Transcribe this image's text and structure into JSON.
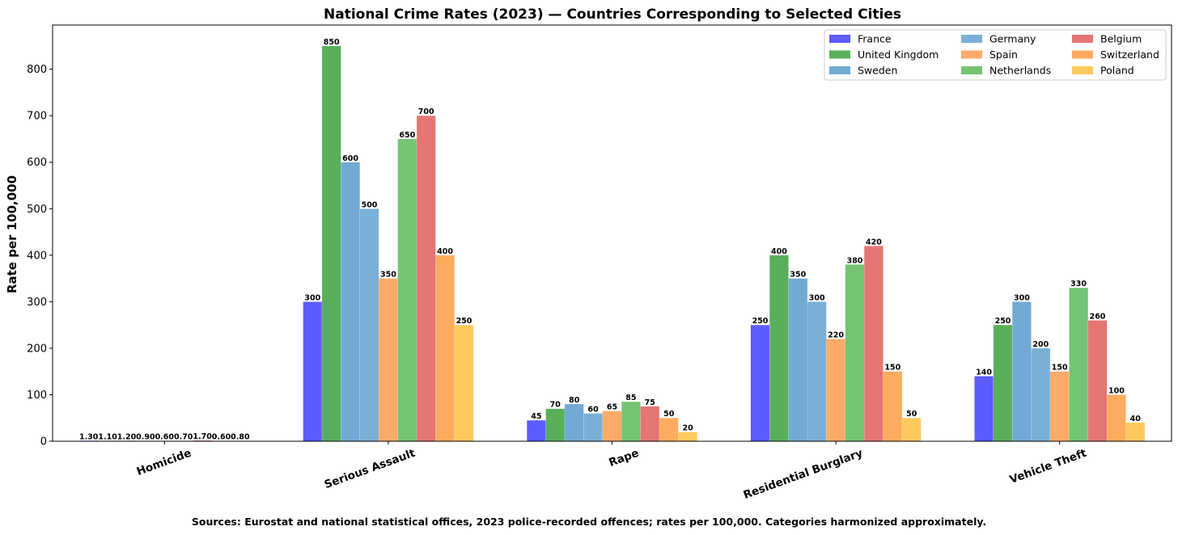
{
  "chart_data": {
    "type": "bar",
    "title": "National Crime Rates (2023) — Countries Corresponding to Selected Cities",
    "xlabel": "",
    "ylabel": "Rate per 100,000",
    "ylim": [
      0,
      895
    ],
    "yticks": [
      0,
      100,
      200,
      300,
      400,
      500,
      600,
      700,
      800
    ],
    "categories": [
      "Homicide",
      "Serious Assault",
      "Rape",
      "Residential Burglary",
      "Vehicle Theft"
    ],
    "series": [
      {
        "name": "France",
        "color": "#5c5cff",
        "values": [
          1.3,
          300,
          45,
          250,
          140
        ]
      },
      {
        "name": "United Kingdom",
        "color": "#5aaf5a",
        "values": [
          1.1,
          850,
          70,
          400,
          250
        ]
      },
      {
        "name": "Sweden",
        "color": "#72aad4",
        "values": [
          1.2,
          600,
          80,
          350,
          300
        ]
      },
      {
        "name": "Germany",
        "color": "#7ab0d6",
        "values": [
          0.9,
          500,
          60,
          300,
          200
        ]
      },
      {
        "name": "Spain",
        "color": "#fdab68",
        "values": [
          0.6,
          350,
          65,
          220,
          150
        ]
      },
      {
        "name": "Netherlands",
        "color": "#74c474",
        "values": [
          0.7,
          650,
          85,
          380,
          330
        ]
      },
      {
        "name": "Belgium",
        "color": "#e57573",
        "values": [
          1.7,
          700,
          75,
          420,
          260
        ]
      },
      {
        "name": "Switzerland",
        "color": "#fdab5e",
        "values": [
          0.6,
          400,
          50,
          150,
          100
        ]
      },
      {
        "name": "Poland",
        "color": "#ffc95e",
        "values": [
          0.8,
          250,
          20,
          50,
          40
        ]
      }
    ],
    "data_labels": [
      [
        "1.30",
        "1.10",
        "1.20",
        "0.90",
        "0.60",
        "0.70",
        "1.70",
        "0.60",
        "0.80"
      ],
      [
        "300",
        "850",
        "600",
        "500",
        "350",
        "650",
        "700",
        "400",
        "250"
      ],
      [
        "45",
        "70",
        "80",
        "60",
        "65",
        "85",
        "75",
        "50",
        "20"
      ],
      [
        "250",
        "400",
        "350",
        "300",
        "220",
        "380",
        "420",
        "150",
        "50"
      ],
      [
        "140",
        "250",
        "300",
        "200",
        "150",
        "330",
        "260",
        "100",
        "40"
      ]
    ],
    "legend": {
      "position": "top-right",
      "columns": 3,
      "entries": [
        "France",
        "United Kingdom",
        "Sweden",
        "Germany",
        "Spain",
        "Netherlands",
        "Belgium",
        "Switzerland",
        "Poland"
      ]
    },
    "grid": false,
    "source_note": "Sources: Eurostat and national statistical offices, 2023 police-recorded offences; rates per 100,000. Categories harmonized approximately."
  }
}
